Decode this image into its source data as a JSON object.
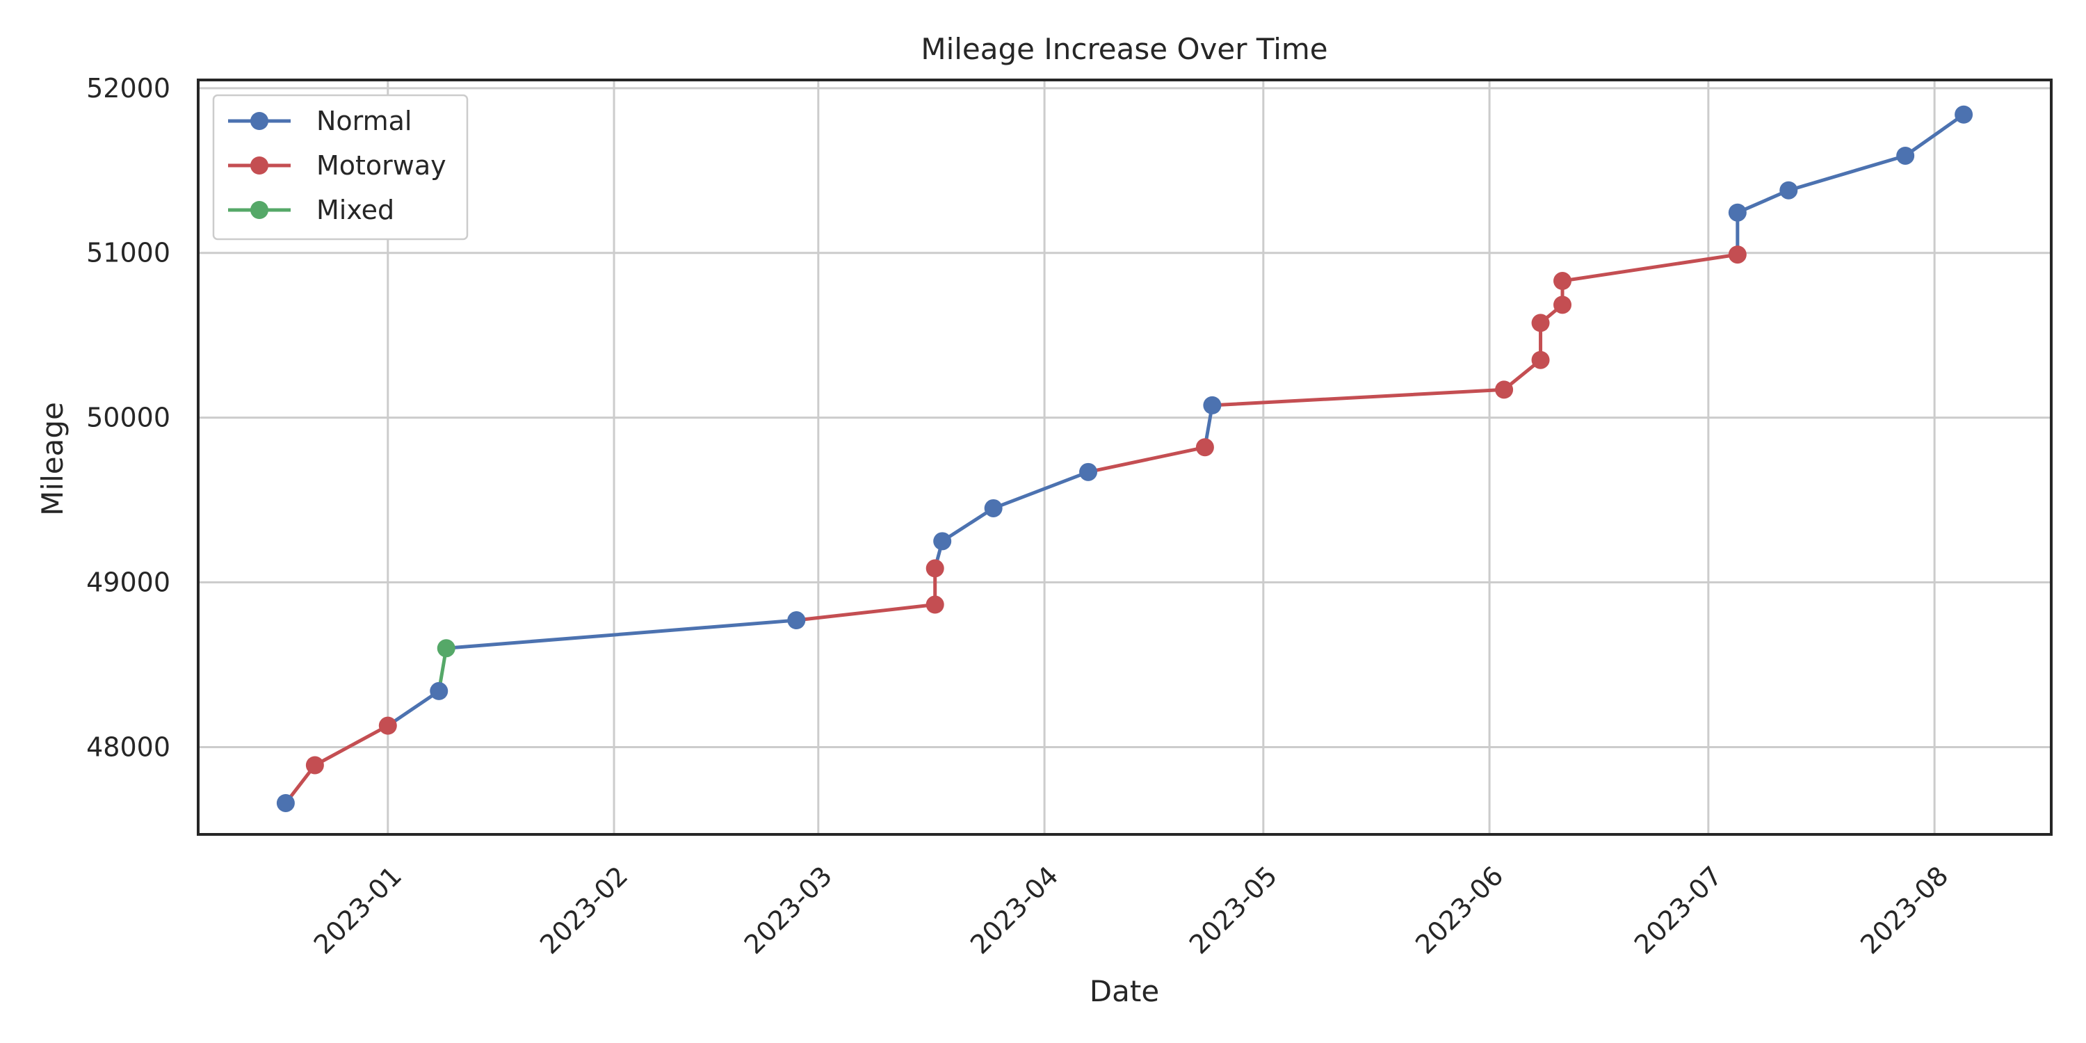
{
  "chart_data": {
    "type": "line",
    "title": "Mileage Increase Over Time",
    "xlabel": "Date",
    "ylabel": "Mileage",
    "xlim": [
      "2022-12-06",
      "2023-08-17"
    ],
    "ylim": [
      47470,
      52050
    ],
    "x_ticks": [
      "2023-01-01",
      "2023-02-01",
      "2023-03-01",
      "2023-04-01",
      "2023-05-01",
      "2023-06-01",
      "2023-07-01",
      "2023-08-01"
    ],
    "x_tick_labels": [
      "2023-01",
      "2023-02",
      "2023-03",
      "2023-04",
      "2023-05",
      "2023-06",
      "2023-07",
      "2023-08"
    ],
    "y_ticks": [
      48000,
      49000,
      50000,
      51000,
      52000
    ],
    "y_tick_labels": [
      "48000",
      "49000",
      "50000",
      "51000",
      "52000"
    ],
    "grid": true,
    "legend_position": "top-left",
    "series": [
      {
        "name": "Normal",
        "color": "#4c72b0"
      },
      {
        "name": "Motorway",
        "color": "#c44e52"
      },
      {
        "name": "Mixed",
        "color": "#55a868"
      }
    ],
    "points": [
      {
        "x": "2022-12-18",
        "y": 47660,
        "s": 0
      },
      {
        "x": "2022-12-22",
        "y": 47890,
        "s": 1
      },
      {
        "x": "2023-01-01",
        "y": 48130,
        "s": 1
      },
      {
        "x": "2023-01-08",
        "y": 48340,
        "s": 0
      },
      {
        "x": "2023-01-09",
        "y": 48600,
        "s": 2
      },
      {
        "x": "2023-02-26",
        "y": 48770,
        "s": 0
      },
      {
        "x": "2023-03-17",
        "y": 48865,
        "s": 1
      },
      {
        "x": "2023-03-17",
        "y": 49085,
        "s": 1
      },
      {
        "x": "2023-03-18",
        "y": 49250,
        "s": 0
      },
      {
        "x": "2023-03-25",
        "y": 49450,
        "s": 0
      },
      {
        "x": "2023-04-07",
        "y": 49670,
        "s": 0
      },
      {
        "x": "2023-04-23",
        "y": 49820,
        "s": 1
      },
      {
        "x": "2023-04-24",
        "y": 50075,
        "s": 0
      },
      {
        "x": "2023-06-03",
        "y": 50170,
        "s": 1
      },
      {
        "x": "2023-06-08",
        "y": 50350,
        "s": 1
      },
      {
        "x": "2023-06-08",
        "y": 50575,
        "s": 1
      },
      {
        "x": "2023-06-11",
        "y": 50685,
        "s": 1
      },
      {
        "x": "2023-06-11",
        "y": 50830,
        "s": 1
      },
      {
        "x": "2023-07-05",
        "y": 50990,
        "s": 1
      },
      {
        "x": "2023-07-05",
        "y": 51245,
        "s": 0
      },
      {
        "x": "2023-07-12",
        "y": 51380,
        "s": 0
      },
      {
        "x": "2023-07-28",
        "y": 51590,
        "s": 0
      },
      {
        "x": "2023-08-05",
        "y": 51840,
        "s": 0
      }
    ]
  }
}
